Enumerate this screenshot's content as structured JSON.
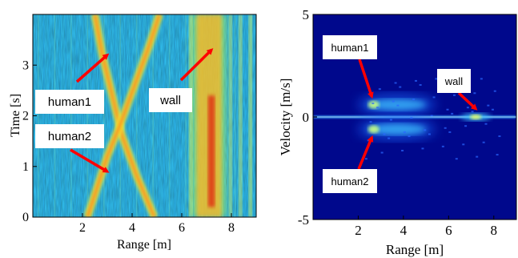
{
  "chart_data": [
    {
      "type": "heatmap",
      "title": "",
      "xlabel": "Range [m]",
      "ylabel": "Time [s]",
      "xlim": [
        0,
        9
      ],
      "ylim": [
        0,
        4
      ],
      "xticks": [
        2,
        4,
        6,
        8
      ],
      "yticks": [
        0,
        1,
        2,
        3
      ],
      "colormap": "jet",
      "features": [
        {
          "name": "human1",
          "kind": "track",
          "points": [
            [
              2.5,
              4.0
            ],
            [
              2.8,
              3.2
            ],
            [
              3.2,
              2.4
            ],
            [
              3.6,
              1.6
            ],
            [
              4.2,
              0.8
            ],
            [
              4.9,
              0.0
            ]
          ]
        },
        {
          "name": "human2",
          "kind": "track",
          "points": [
            [
              2.2,
              0.0
            ],
            [
              2.6,
              0.6
            ],
            [
              3.0,
              1.2
            ],
            [
              3.5,
              1.8
            ],
            [
              4.1,
              2.6
            ],
            [
              4.7,
              3.4
            ],
            [
              5.1,
              4.0
            ]
          ]
        },
        {
          "name": "wall",
          "kind": "band",
          "x_range": [
            6.6,
            7.6
          ]
        }
      ],
      "annotations": [
        {
          "text": "human1",
          "points_to": [
            3.0,
            3.2
          ]
        },
        {
          "text": "human2",
          "points_to": [
            3.0,
            0.9
          ]
        },
        {
          "text": "wall",
          "points_to": [
            7.2,
            3.3
          ]
        }
      ]
    },
    {
      "type": "heatmap",
      "title": "",
      "xlabel": "Range [m]",
      "ylabel": "Velocity [m/s]",
      "xlim": [
        0,
        9
      ],
      "ylim": [
        -5,
        5
      ],
      "xticks": [
        2,
        4,
        6,
        8
      ],
      "yticks": [
        -5,
        0,
        5
      ],
      "colormap": "jet",
      "features": [
        {
          "name": "zero-velocity line",
          "kind": "line",
          "y": 0
        },
        {
          "name": "human1",
          "kind": "blob",
          "x_range": [
            2.4,
            5.0
          ],
          "velocity": 0.6
        },
        {
          "name": "human2",
          "kind": "blob",
          "x_range": [
            2.4,
            5.0
          ],
          "velocity": -0.6
        },
        {
          "name": "wall",
          "kind": "blob",
          "x": 7.2,
          "velocity": 0.0
        }
      ],
      "annotations": [
        {
          "text": "human1",
          "points_to": [
            2.6,
            1.0
          ]
        },
        {
          "text": "human2",
          "points_to": [
            2.6,
            -1.0
          ]
        },
        {
          "text": "wall",
          "points_to": [
            7.2,
            0.4
          ]
        }
      ]
    }
  ]
}
